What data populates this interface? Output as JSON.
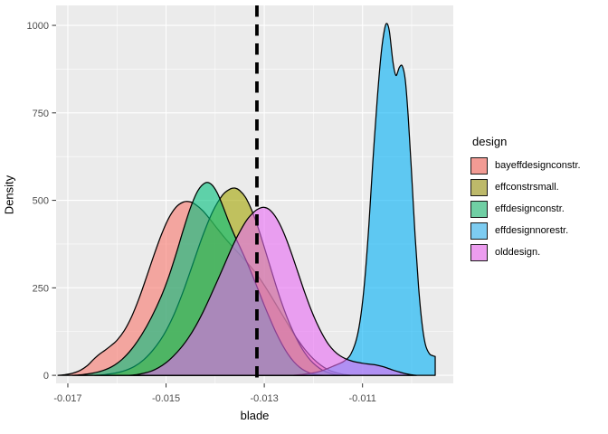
{
  "chart_data": {
    "type": "area",
    "subtype": "overlapping-density-curves",
    "title": "",
    "xlabel": "blade",
    "ylabel": "Density",
    "xlim": [
      -0.017239,
      -0.009152
    ],
    "ylim": [
      -23,
      1057
    ],
    "grid": "on",
    "colors": {
      "panel_bg": "#EBEBEB",
      "grid_major": "#FFFFFF",
      "grid_minor": "#FFFFFF",
      "tick_text": "#4D4D4D",
      "tick_mark": "#333333",
      "outline": "#000000",
      "reference_line": "#000000"
    },
    "fill_opacity": 0.6,
    "x_ticks": {
      "major": [
        {
          "v": -0.017,
          "label": "-0.017"
        },
        {
          "v": -0.015,
          "label": "-0.015"
        },
        {
          "v": -0.013,
          "label": "-0.013"
        },
        {
          "v": -0.011,
          "label": "-0.011"
        }
      ],
      "minor": [
        -0.016,
        -0.014,
        -0.012,
        -0.01
      ]
    },
    "y_ticks": {
      "major": [
        {
          "v": 0,
          "label": "0"
        },
        {
          "v": 250,
          "label": "250"
        },
        {
          "v": 500,
          "label": "500"
        },
        {
          "v": 750,
          "label": "750"
        },
        {
          "v": 1000,
          "label": "1000"
        }
      ],
      "minor": [
        125,
        375,
        625,
        875
      ]
    },
    "reference_line": {
      "x": -0.01315,
      "style": "dashed",
      "width": 3.8,
      "dash": "12.5 8.5"
    },
    "legend": {
      "title": "design",
      "position": "right"
    },
    "series": [
      {
        "key": "bayeffdesignconstr",
        "name": "bayeffdesignconstr.",
        "color": "#F8766D",
        "swatch": "#F29B94",
        "peak": {
          "x": -0.0146,
          "density": 497
        },
        "points": [
          [
            -0.0172,
            0
          ],
          [
            -0.01705,
            2
          ],
          [
            -0.0169,
            6
          ],
          [
            -0.01675,
            14
          ],
          [
            -0.0166,
            28
          ],
          [
            -0.01648,
            45
          ],
          [
            -0.01636,
            60
          ],
          [
            -0.01624,
            72
          ],
          [
            -0.01612,
            85
          ],
          [
            -0.016,
            100
          ],
          [
            -0.01585,
            128
          ],
          [
            -0.0157,
            168
          ],
          [
            -0.01555,
            220
          ],
          [
            -0.0154,
            280
          ],
          [
            -0.01525,
            342
          ],
          [
            -0.0151,
            400
          ],
          [
            -0.01495,
            448
          ],
          [
            -0.0148,
            480
          ],
          [
            -0.01465,
            495
          ],
          [
            -0.01452,
            496
          ],
          [
            -0.0144,
            488
          ],
          [
            -0.01425,
            470
          ],
          [
            -0.0141,
            445
          ],
          [
            -0.01395,
            418
          ],
          [
            -0.0138,
            392
          ],
          [
            -0.01365,
            368
          ],
          [
            -0.0135,
            345
          ],
          [
            -0.01335,
            322
          ],
          [
            -0.0132,
            297
          ],
          [
            -0.01305,
            268
          ],
          [
            -0.0129,
            235
          ],
          [
            -0.01275,
            200
          ],
          [
            -0.0126,
            165
          ],
          [
            -0.01245,
            130
          ],
          [
            -0.0123,
            98
          ],
          [
            -0.01215,
            70
          ],
          [
            -0.012,
            47
          ],
          [
            -0.01185,
            29
          ],
          [
            -0.0117,
            16
          ],
          [
            -0.01155,
            8
          ],
          [
            -0.0114,
            3
          ],
          [
            -0.01125,
            0
          ]
        ]
      },
      {
        "key": "effconstrsmall",
        "name": "effconstrsmall.",
        "color": "#A3A500",
        "swatch": "#BDB96A",
        "peak": {
          "x": -0.0136,
          "density": 535
        },
        "points": [
          [
            -0.01645,
            0
          ],
          [
            -0.01625,
            2
          ],
          [
            -0.01605,
            6
          ],
          [
            -0.01585,
            13
          ],
          [
            -0.01565,
            25
          ],
          [
            -0.01545,
            45
          ],
          [
            -0.01525,
            75
          ],
          [
            -0.01505,
            115
          ],
          [
            -0.01485,
            170
          ],
          [
            -0.01465,
            240
          ],
          [
            -0.01445,
            320
          ],
          [
            -0.01425,
            400
          ],
          [
            -0.01405,
            468
          ],
          [
            -0.01385,
            515
          ],
          [
            -0.0137,
            532
          ],
          [
            -0.0136,
            535
          ],
          [
            -0.0135,
            528
          ],
          [
            -0.01338,
            508
          ],
          [
            -0.01326,
            473
          ],
          [
            -0.01314,
            428
          ],
          [
            -0.01302,
            375
          ],
          [
            -0.0129,
            320
          ],
          [
            -0.01278,
            265
          ],
          [
            -0.01266,
            213
          ],
          [
            -0.01254,
            167
          ],
          [
            -0.01242,
            127
          ],
          [
            -0.0123,
            93
          ],
          [
            -0.01218,
            65
          ],
          [
            -0.01206,
            43
          ],
          [
            -0.01194,
            27
          ],
          [
            -0.01182,
            15
          ],
          [
            -0.0117,
            8
          ],
          [
            -0.01158,
            3
          ],
          [
            -0.01146,
            0
          ]
        ]
      },
      {
        "key": "effdesignconstr",
        "name": "effdesignconstr.",
        "color": "#00BF7D",
        "swatch": "#70CFA4",
        "peak": {
          "x": -0.0142,
          "density": 550
        },
        "points": [
          [
            -0.0169,
            0
          ],
          [
            -0.0167,
            2
          ],
          [
            -0.0165,
            6
          ],
          [
            -0.0163,
            13
          ],
          [
            -0.0161,
            25
          ],
          [
            -0.0159,
            45
          ],
          [
            -0.0157,
            75
          ],
          [
            -0.0155,
            115
          ],
          [
            -0.0153,
            165
          ],
          [
            -0.0151,
            225
          ],
          [
            -0.01495,
            280
          ],
          [
            -0.0148,
            345
          ],
          [
            -0.01465,
            415
          ],
          [
            -0.0145,
            480
          ],
          [
            -0.01435,
            528
          ],
          [
            -0.0142,
            550
          ],
          [
            -0.01408,
            546
          ],
          [
            -0.01396,
            522
          ],
          [
            -0.01384,
            482
          ],
          [
            -0.01372,
            438
          ],
          [
            -0.0136,
            398
          ],
          [
            -0.01348,
            362
          ],
          [
            -0.01336,
            325
          ],
          [
            -0.01324,
            285
          ],
          [
            -0.01312,
            243
          ],
          [
            -0.013,
            200
          ],
          [
            -0.01288,
            160
          ],
          [
            -0.01276,
            122
          ],
          [
            -0.01264,
            89
          ],
          [
            -0.01252,
            61
          ],
          [
            -0.0124,
            39
          ],
          [
            -0.01228,
            23
          ],
          [
            -0.01216,
            12
          ],
          [
            -0.01204,
            5
          ],
          [
            -0.01192,
            2
          ],
          [
            -0.0118,
            0
          ]
        ]
      },
      {
        "key": "effdesignnorestr",
        "name": "effdesignnorestr.",
        "color": "#00B0F6",
        "swatch": "#7DCCF1",
        "peak": {
          "x": -0.0105,
          "density": 1005
        },
        "second_peak": {
          "x": -0.0102,
          "density": 884
        },
        "points": [
          [
            -0.0124,
            0
          ],
          [
            -0.0122,
            3
          ],
          [
            -0.012,
            7
          ],
          [
            -0.01185,
            12
          ],
          [
            -0.0117,
            20
          ],
          [
            -0.0116,
            26
          ],
          [
            -0.01148,
            33
          ],
          [
            -0.01136,
            42
          ],
          [
            -0.01124,
            60
          ],
          [
            -0.01112,
            105
          ],
          [
            -0.01103,
            175
          ],
          [
            -0.01095,
            280
          ],
          [
            -0.01087,
            430
          ],
          [
            -0.01079,
            610
          ],
          [
            -0.0107,
            790
          ],
          [
            -0.01062,
            920
          ],
          [
            -0.01055,
            990
          ],
          [
            -0.0105,
            1005
          ],
          [
            -0.01045,
            980
          ],
          [
            -0.01038,
            895
          ],
          [
            -0.01032,
            857
          ],
          [
            -0.01025,
            880
          ],
          [
            -0.01019,
            884
          ],
          [
            -0.01013,
            845
          ],
          [
            -0.01007,
            740
          ],
          [
            -0.01001,
            600
          ],
          [
            -0.00993,
            400
          ],
          [
            -0.00986,
            255
          ],
          [
            -0.00979,
            150
          ],
          [
            -0.00972,
            88
          ],
          [
            -0.00964,
            62
          ],
          [
            -0.00957,
            56
          ],
          [
            -0.00952,
            54
          ]
        ]
      },
      {
        "key": "olddesign",
        "name": "olddesign.",
        "color": "#E76BF3",
        "swatch": "#EC9DEF",
        "peak": {
          "x": -0.013,
          "density": 480
        },
        "points": [
          [
            -0.01575,
            0
          ],
          [
            -0.0156,
            2
          ],
          [
            -0.01545,
            6
          ],
          [
            -0.0153,
            12
          ],
          [
            -0.01515,
            22
          ],
          [
            -0.015,
            36
          ],
          [
            -0.01485,
            55
          ],
          [
            -0.0147,
            78
          ],
          [
            -0.01455,
            106
          ],
          [
            -0.0144,
            140
          ],
          [
            -0.01425,
            180
          ],
          [
            -0.0141,
            225
          ],
          [
            -0.01395,
            272
          ],
          [
            -0.0138,
            320
          ],
          [
            -0.01365,
            368
          ],
          [
            -0.0135,
            410
          ],
          [
            -0.01335,
            445
          ],
          [
            -0.0132,
            468
          ],
          [
            -0.0131,
            477
          ],
          [
            -0.013,
            480
          ],
          [
            -0.0129,
            474
          ],
          [
            -0.01278,
            455
          ],
          [
            -0.01266,
            425
          ],
          [
            -0.01254,
            385
          ],
          [
            -0.01242,
            338
          ],
          [
            -0.0123,
            288
          ],
          [
            -0.01218,
            238
          ],
          [
            -0.01206,
            192
          ],
          [
            -0.01194,
            152
          ],
          [
            -0.01182,
            118
          ],
          [
            -0.0117,
            90
          ],
          [
            -0.01158,
            70
          ],
          [
            -0.01146,
            56
          ],
          [
            -0.01134,
            47
          ],
          [
            -0.01122,
            41
          ],
          [
            -0.0111,
            37
          ],
          [
            -0.01098,
            34
          ],
          [
            -0.01086,
            32
          ],
          [
            -0.01074,
            30
          ],
          [
            -0.01062,
            26
          ],
          [
            -0.0105,
            21
          ],
          [
            -0.01038,
            15
          ],
          [
            -0.01026,
            10
          ],
          [
            -0.01014,
            5
          ],
          [
            -0.01002,
            2
          ],
          [
            -0.0099,
            0
          ]
        ]
      }
    ]
  }
}
